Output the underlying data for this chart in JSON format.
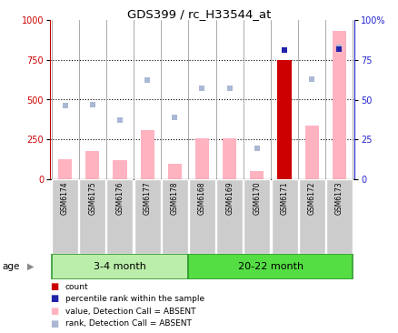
{
  "title": "GDS399 / rc_H33544_at",
  "samples": [
    "GSM6174",
    "GSM6175",
    "GSM6176",
    "GSM6177",
    "GSM6178",
    "GSM6168",
    "GSM6169",
    "GSM6170",
    "GSM6171",
    "GSM6172",
    "GSM6173"
  ],
  "group1_label": "3-4 month",
  "group2_label": "20-22 month",
  "group1_count": 5,
  "group2_count": 6,
  "age_label": "age",
  "ylim_left": [
    0,
    1000
  ],
  "ylim_right": [
    0,
    100
  ],
  "yticks_left": [
    0,
    250,
    500,
    750,
    1000
  ],
  "yticks_right": [
    0,
    25,
    50,
    75,
    100
  ],
  "values_absent": [
    125,
    175,
    120,
    310,
    100,
    255,
    255,
    50,
    750,
    335,
    930
  ],
  "ranks_absent": [
    460,
    470,
    370,
    620,
    390,
    570,
    570,
    195,
    null,
    630,
    830
  ],
  "count_values": [
    null,
    null,
    null,
    null,
    null,
    null,
    null,
    null,
    750,
    null,
    null
  ],
  "percentile_values": [
    null,
    null,
    null,
    null,
    null,
    null,
    null,
    null,
    810,
    null,
    820
  ],
  "bar_color_absent": "#ffb3c1",
  "bar_color_count": "#cc0000",
  "dot_color_rank": "#aab8d4",
  "dot_color_percentile": "#2222aa",
  "dotted_line_color": "black",
  "background_plot": "white",
  "tick_bg": "#cccccc",
  "group_bg_light": "#bbeeaa",
  "group_bg_dark": "#55dd44",
  "left_axis_color": "#cc0000",
  "right_axis_color": "#2222cc",
  "legend_items": [
    "count",
    "percentile rank within the sample",
    "value, Detection Call = ABSENT",
    "rank, Detection Call = ABSENT"
  ],
  "legend_colors": [
    "#cc0000",
    "#2222aa",
    "#ffb3c1",
    "#aab8d4"
  ]
}
